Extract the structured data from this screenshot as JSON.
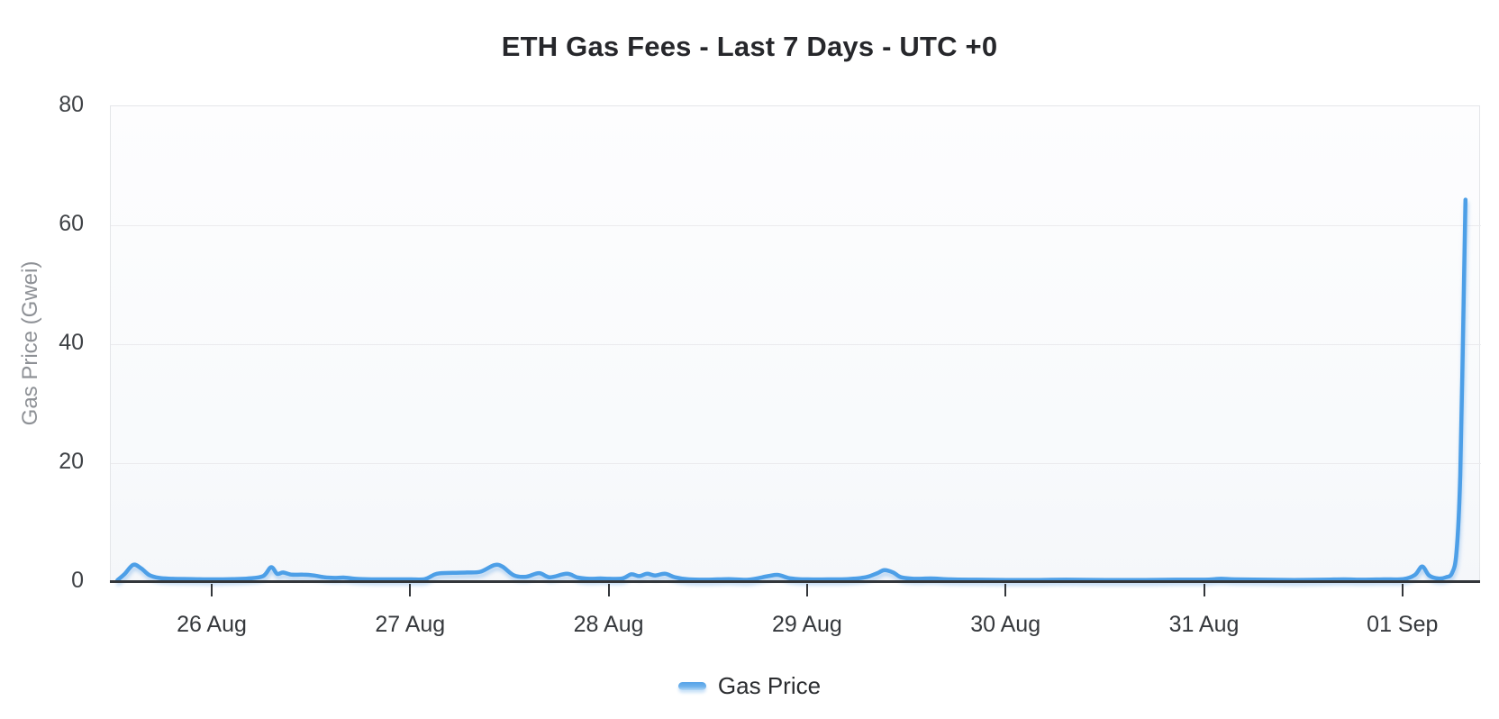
{
  "title": "ETH Gas Fees - Last 7 Days - UTC +0",
  "legend": {
    "label": "Gas Price"
  },
  "y_axis": {
    "title": "Gas Price (Gwei)",
    "tick_labels": [
      "0",
      "20",
      "40",
      "60",
      "80"
    ]
  },
  "x_axis": {
    "tick_labels": [
      "26 Aug",
      "27 Aug",
      "28 Aug",
      "29 Aug",
      "30 Aug",
      "31 Aug",
      "01 Sep"
    ]
  },
  "colors": {
    "line": "#4d9fe7",
    "line_shadow": "rgba(125,180,235,0.55)",
    "grid": "#ebebee",
    "axis": "#33363a",
    "plot_border": "#e4e6e9",
    "title_text": "#26272b",
    "tick_text": "#3f4246",
    "muted_text": "#8e9196"
  },
  "chart_data": {
    "type": "line",
    "title": "ETH Gas Fees - Last 7 Days - UTC +0",
    "xlabel": "",
    "ylabel": "Gas Price (Gwei)",
    "x_unit": "days relative to 26 Aug 00:00 UTC+0",
    "x_tick_positions": [
      0,
      1,
      2,
      3,
      4,
      5,
      6
    ],
    "x_tick_labels": [
      "26 Aug",
      "27 Aug",
      "28 Aug",
      "29 Aug",
      "30 Aug",
      "31 Aug",
      "01 Sep"
    ],
    "xlim": [
      -0.51,
      6.39
    ],
    "ylim": [
      0,
      80
    ],
    "y_ticks": [
      0,
      20,
      40,
      60,
      80
    ],
    "grid": "horizontal",
    "legend_position": "bottom",
    "series": [
      {
        "name": "Gas Price",
        "points": [
          [
            -0.48,
            0.3
          ],
          [
            -0.445,
            1.3
          ],
          [
            -0.4,
            2.9
          ],
          [
            -0.36,
            2.3
          ],
          [
            -0.32,
            1.2
          ],
          [
            -0.27,
            0.7
          ],
          [
            -0.2,
            0.55
          ],
          [
            -0.1,
            0.5
          ],
          [
            0.0,
            0.45
          ],
          [
            0.1,
            0.5
          ],
          [
            0.18,
            0.6
          ],
          [
            0.255,
            1.0
          ],
          [
            0.295,
            2.5
          ],
          [
            0.325,
            1.4
          ],
          [
            0.355,
            1.6
          ],
          [
            0.4,
            1.25
          ],
          [
            0.455,
            1.25
          ],
          [
            0.51,
            1.1
          ],
          [
            0.565,
            0.8
          ],
          [
            0.615,
            0.7
          ],
          [
            0.66,
            0.75
          ],
          [
            0.72,
            0.55
          ],
          [
            0.8,
            0.45
          ],
          [
            0.9,
            0.45
          ],
          [
            1.0,
            0.45
          ],
          [
            1.07,
            0.5
          ],
          [
            1.13,
            1.4
          ],
          [
            1.21,
            1.55
          ],
          [
            1.28,
            1.6
          ],
          [
            1.35,
            1.75
          ],
          [
            1.42,
            2.85
          ],
          [
            1.46,
            2.6
          ],
          [
            1.52,
            1.1
          ],
          [
            1.58,
            0.9
          ],
          [
            1.645,
            1.5
          ],
          [
            1.7,
            0.8
          ],
          [
            1.785,
            1.4
          ],
          [
            1.84,
            0.75
          ],
          [
            1.9,
            0.55
          ],
          [
            1.955,
            0.6
          ],
          [
            2.0,
            0.55
          ],
          [
            2.065,
            0.6
          ],
          [
            2.11,
            1.3
          ],
          [
            2.15,
            1.0
          ],
          [
            2.19,
            1.4
          ],
          [
            2.23,
            1.1
          ],
          [
            2.28,
            1.4
          ],
          [
            2.33,
            0.8
          ],
          [
            2.4,
            0.45
          ],
          [
            2.5,
            0.4
          ],
          [
            2.6,
            0.5
          ],
          [
            2.7,
            0.4
          ],
          [
            2.8,
            1.0
          ],
          [
            2.85,
            1.2
          ],
          [
            2.9,
            0.7
          ],
          [
            2.95,
            0.5
          ],
          [
            3.0,
            0.45
          ],
          [
            3.1,
            0.45
          ],
          [
            3.2,
            0.5
          ],
          [
            3.29,
            0.8
          ],
          [
            3.35,
            1.5
          ],
          [
            3.385,
            2.0
          ],
          [
            3.43,
            1.6
          ],
          [
            3.47,
            0.8
          ],
          [
            3.54,
            0.55
          ],
          [
            3.62,
            0.6
          ],
          [
            3.72,
            0.45
          ],
          [
            3.85,
            0.4
          ],
          [
            4.0,
            0.35
          ],
          [
            4.15,
            0.35
          ],
          [
            4.3,
            0.4
          ],
          [
            4.5,
            0.35
          ],
          [
            4.7,
            0.35
          ],
          [
            4.85,
            0.4
          ],
          [
            5.0,
            0.4
          ],
          [
            5.08,
            0.55
          ],
          [
            5.15,
            0.45
          ],
          [
            5.3,
            0.4
          ],
          [
            5.45,
            0.35
          ],
          [
            5.6,
            0.4
          ],
          [
            5.7,
            0.45
          ],
          [
            5.8,
            0.4
          ],
          [
            5.9,
            0.45
          ],
          [
            6.0,
            0.5
          ],
          [
            6.058,
            1.2
          ],
          [
            6.095,
            2.6
          ],
          [
            6.13,
            1.1
          ],
          [
            6.175,
            0.6
          ],
          [
            6.215,
            0.8
          ],
          [
            6.245,
            1.5
          ],
          [
            6.268,
            5.0
          ],
          [
            6.287,
            18.0
          ],
          [
            6.3,
            40.0
          ],
          [
            6.313,
            64.3
          ]
        ]
      }
    ]
  }
}
